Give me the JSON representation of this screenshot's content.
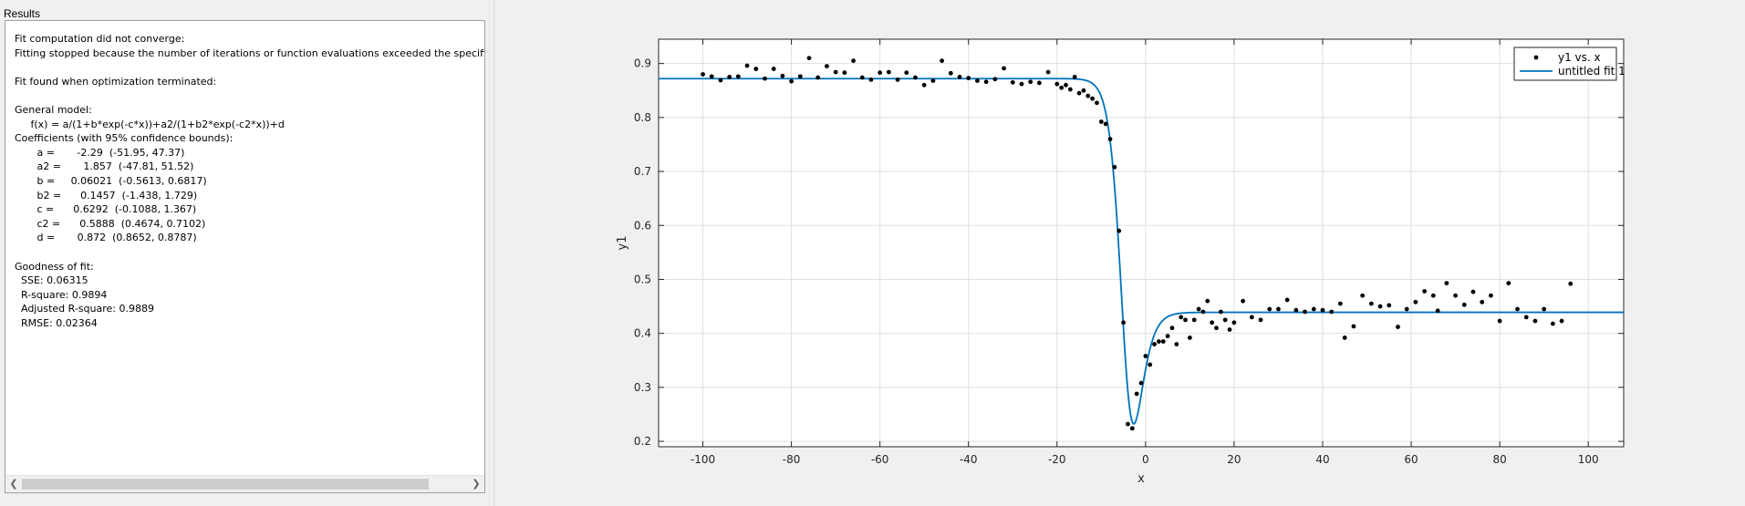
{
  "results": {
    "title": "Results",
    "lines": [
      "Fit computation did not converge:",
      "Fitting stopped because the number of iterations or function evaluations exceeded the specified m",
      "",
      "Fit found when optimization terminated:",
      "",
      "General model:",
      "     f(x) = a/(1+b*exp(-c*x))+a2/(1+b2*exp(-c2*x))+d",
      "Coefficients (with 95% confidence bounds):",
      "       a =       -2.29  (-51.95, 47.37)",
      "       a2 =       1.857  (-47.81, 51.52)",
      "       b =     0.06021  (-0.5613, 0.6817)",
      "       b2 =      0.1457  (-1.438, 1.729)",
      "       c =      0.6292  (-0.1088, 1.367)",
      "       c2 =      0.5888  (0.4674, 0.7102)",
      "       d =       0.872  (0.8652, 0.8787)",
      "",
      "Goodness of fit:",
      "  SSE: 0.06315",
      "  R-square: 0.9894",
      "  Adjusted R-square: 0.9889",
      "  RMSE: 0.02364"
    ],
    "scroll_left_icon": "arrow-left",
    "scroll_right_icon": "arrow-right"
  },
  "chart_data": {
    "type": "scatter",
    "xlabel": "x",
    "ylabel": "y1",
    "xlim": [
      -110,
      108
    ],
    "ylim": [
      0.19,
      0.945
    ],
    "x_ticks": [
      -100,
      -80,
      -60,
      -40,
      -20,
      0,
      20,
      40,
      60,
      80,
      100
    ],
    "y_ticks": [
      0.2,
      0.3,
      0.4,
      0.5,
      0.6,
      0.7,
      0.8,
      0.9
    ],
    "grid": true,
    "legend_position": "top-right",
    "legend": [
      "y1 vs. x",
      "untitled fit 1"
    ],
    "colors": {
      "points": "#000000",
      "fit": "#0072bd"
    },
    "fit_coefficients": {
      "a": -2.29,
      "a2": 1.857,
      "b": 0.06021,
      "b2": 0.1457,
      "c": 0.6292,
      "c2": 0.5888,
      "d": 0.872
    },
    "series": [
      {
        "name": "y1 vs. x",
        "style": "markers",
        "points": [
          [
            -100,
            0.88
          ],
          [
            -98,
            0.876
          ],
          [
            -96,
            0.869
          ],
          [
            -94,
            0.875
          ],
          [
            -92,
            0.876
          ],
          [
            -90,
            0.896
          ],
          [
            -88,
            0.89
          ],
          [
            -86,
            0.872
          ],
          [
            -84,
            0.89
          ],
          [
            -82,
            0.877
          ],
          [
            -80,
            0.867
          ],
          [
            -78,
            0.876
          ],
          [
            -76,
            0.91
          ],
          [
            -74,
            0.874
          ],
          [
            -72,
            0.895
          ],
          [
            -70,
            0.884
          ],
          [
            -68,
            0.883
          ],
          [
            -66,
            0.905
          ],
          [
            -64,
            0.874
          ],
          [
            -62,
            0.87
          ],
          [
            -60,
            0.883
          ],
          [
            -58,
            0.884
          ],
          [
            -56,
            0.87
          ],
          [
            -54,
            0.883
          ],
          [
            -52,
            0.874
          ],
          [
            -50,
            0.86
          ],
          [
            -48,
            0.868
          ],
          [
            -46,
            0.905
          ],
          [
            -44,
            0.882
          ],
          [
            -42,
            0.875
          ],
          [
            -40,
            0.873
          ],
          [
            -38,
            0.868
          ],
          [
            -36,
            0.866
          ],
          [
            -34,
            0.871
          ],
          [
            -32,
            0.891
          ],
          [
            -30,
            0.865
          ],
          [
            -28,
            0.862
          ],
          [
            -26,
            0.866
          ],
          [
            -24,
            0.864
          ],
          [
            -22,
            0.884
          ],
          [
            -20,
            0.862
          ],
          [
            -19,
            0.855
          ],
          [
            -18,
            0.86
          ],
          [
            -17,
            0.852
          ],
          [
            -16,
            0.875
          ],
          [
            -15,
            0.845
          ],
          [
            -14,
            0.85
          ],
          [
            -13,
            0.84
          ],
          [
            -12,
            0.835
          ],
          [
            -11,
            0.827
          ],
          [
            -10,
            0.792
          ],
          [
            -9,
            0.788
          ],
          [
            -8,
            0.76
          ],
          [
            -7,
            0.708
          ],
          [
            -6,
            0.59
          ],
          [
            -5,
            0.42
          ],
          [
            -4,
            0.232
          ],
          [
            -3,
            0.224
          ],
          [
            -2,
            0.288
          ],
          [
            -1,
            0.308
          ],
          [
            0,
            0.358
          ],
          [
            1,
            0.342
          ],
          [
            2,
            0.38
          ],
          [
            3,
            0.385
          ],
          [
            4,
            0.385
          ],
          [
            5,
            0.395
          ],
          [
            6,
            0.41
          ],
          [
            7,
            0.38
          ],
          [
            8,
            0.43
          ],
          [
            9,
            0.425
          ],
          [
            10,
            0.392
          ],
          [
            11,
            0.425
          ],
          [
            12,
            0.445
          ],
          [
            13,
            0.44
          ],
          [
            14,
            0.46
          ],
          [
            15,
            0.42
          ],
          [
            16,
            0.41
          ],
          [
            17,
            0.44
          ],
          [
            18,
            0.425
          ],
          [
            19,
            0.407
          ],
          [
            20,
            0.42
          ],
          [
            22,
            0.46
          ],
          [
            24,
            0.43
          ],
          [
            26,
            0.425
          ],
          [
            28,
            0.445
          ],
          [
            30,
            0.445
          ],
          [
            32,
            0.462
          ],
          [
            34,
            0.443
          ],
          [
            36,
            0.44
          ],
          [
            38,
            0.445
          ],
          [
            40,
            0.443
          ],
          [
            42,
            0.44
          ],
          [
            44,
            0.455
          ],
          [
            45,
            0.392
          ],
          [
            47,
            0.413
          ],
          [
            49,
            0.47
          ],
          [
            51,
            0.455
          ],
          [
            53,
            0.45
          ],
          [
            55,
            0.452
          ],
          [
            57,
            0.412
          ],
          [
            59,
            0.445
          ],
          [
            61,
            0.458
          ],
          [
            63,
            0.478
          ],
          [
            65,
            0.47
          ],
          [
            66,
            0.442
          ],
          [
            68,
            0.493
          ],
          [
            70,
            0.47
          ],
          [
            72,
            0.453
          ],
          [
            74,
            0.477
          ],
          [
            76,
            0.458
          ],
          [
            78,
            0.47
          ],
          [
            80,
            0.423
          ],
          [
            82,
            0.493
          ],
          [
            84,
            0.445
          ],
          [
            86,
            0.43
          ],
          [
            88,
            0.423
          ],
          [
            90,
            0.445
          ],
          [
            92,
            0.418
          ],
          [
            94,
            0.423
          ],
          [
            96,
            0.492
          ]
        ]
      },
      {
        "name": "untitled fit 1",
        "style": "line",
        "function": "f(x) = a/(1+b*exp(-c*x))+a2/(1+b2*exp(-c2*x))+d"
      }
    ]
  }
}
